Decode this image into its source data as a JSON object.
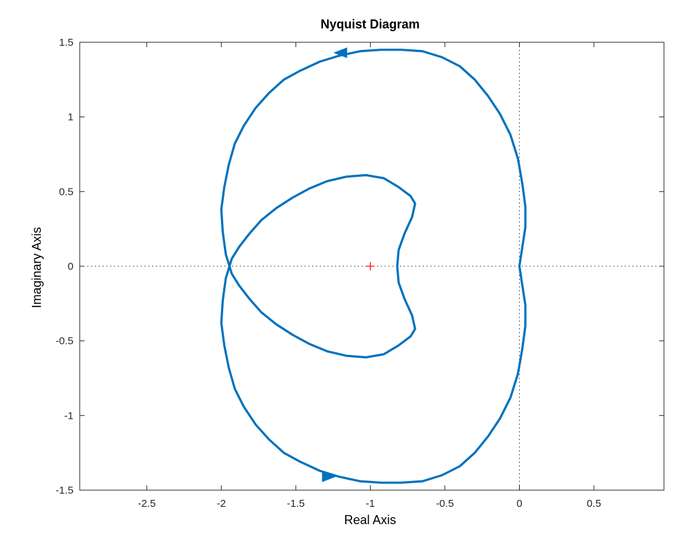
{
  "chart_data": {
    "type": "line",
    "title": "Nyquist Diagram",
    "xlabel": "Real Axis",
    "ylabel": "Imaginary Axis",
    "xlim": [
      -2.95,
      0.97
    ],
    "ylim": [
      -1.5,
      1.5
    ],
    "xticks": [
      -2.5,
      -2,
      -1.5,
      -1,
      -0.5,
      0,
      0.5
    ],
    "xtick_labels": [
      "-2.5",
      "-2",
      "-1.5",
      "-1",
      "-0.5",
      "0",
      "0.5"
    ],
    "yticks": [
      -1.5,
      -1,
      -0.5,
      0,
      0.5,
      1,
      1.5
    ],
    "ytick_labels": [
      "-1.5",
      "-1",
      "-0.5",
      "0",
      "0.5",
      "1",
      "1.5"
    ],
    "grid": false,
    "critical_point": {
      "x": -1,
      "y": 0,
      "marker": "+"
    },
    "reference_lines": [
      {
        "orientation": "horizontal",
        "value": 0,
        "style": "dotted"
      },
      {
        "orientation": "vertical",
        "value": 0,
        "style": "dotted"
      }
    ],
    "series": [
      {
        "color": "#0072BD",
        "x": [
          0.0,
          0.02,
          0.04,
          0.04,
          0.02,
          -0.01,
          -0.06,
          -0.13,
          -0.21,
          -0.3,
          -0.4,
          -0.52,
          -0.65,
          -0.79,
          -0.93,
          -1.07,
          -1.21,
          -1.34,
          -1.47,
          -1.58,
          -1.68,
          -1.77,
          -1.85,
          -1.91,
          -1.95,
          -1.98,
          -2.0,
          -1.99,
          -1.97,
          -1.93,
          -1.88,
          -1.81,
          -1.73,
          -1.63,
          -1.52,
          -1.41,
          -1.29,
          -1.16,
          -1.03,
          -0.91,
          -0.81,
          -0.73,
          -0.7,
          -0.72,
          -0.77,
          -0.81,
          -0.82
        ],
        "y": [
          0.0,
          0.13,
          0.26,
          0.4,
          0.55,
          0.72,
          0.88,
          1.02,
          1.14,
          1.25,
          1.34,
          1.4,
          1.44,
          1.45,
          1.45,
          1.44,
          1.41,
          1.37,
          1.31,
          1.25,
          1.16,
          1.06,
          0.94,
          0.82,
          0.68,
          0.53,
          0.38,
          0.23,
          0.08,
          -0.05,
          -0.13,
          -0.22,
          -0.31,
          -0.39,
          -0.46,
          -0.52,
          -0.57,
          -0.6,
          -0.61,
          -0.59,
          -0.53,
          -0.47,
          -0.42,
          -0.33,
          -0.22,
          -0.11,
          0.0
        ],
        "mirror_about_x_axis": true
      }
    ],
    "direction_arrows": [
      {
        "x": -1.2,
        "y": 1.43,
        "direction": "left"
      },
      {
        "x": -1.28,
        "y": -1.41,
        "direction": "right"
      }
    ]
  }
}
